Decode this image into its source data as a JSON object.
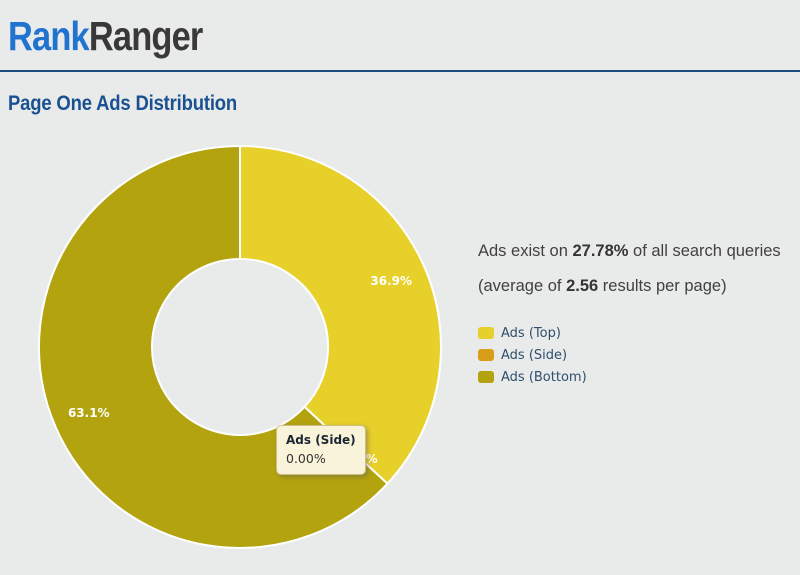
{
  "header": {
    "logo_part1": "Rank",
    "logo_part2": "Ranger",
    "logo_color1": "#2173d0",
    "logo_color2": "#393939",
    "divider_color": "#1e4e7e"
  },
  "title": {
    "text": "Page One Ads Distribution",
    "color": "#1a5191"
  },
  "summary": {
    "line1_pre": "Ads exist on ",
    "line1_bold": "27.78%",
    "line1_post": " of all search queries",
    "line2_pre": "(average of ",
    "line2_bold": "2.56",
    "line2_post": " results per page)"
  },
  "legend": {
    "items": [
      {
        "label": "Ads (Top)",
        "color": "#e7d02a"
      },
      {
        "label": "Ads (Side)",
        "color": "#d99e19"
      },
      {
        "label": "Ads (Bottom)",
        "color": "#b3a30f"
      }
    ]
  },
  "tooltip": {
    "title": "Ads (Side)",
    "value": "0.00%"
  },
  "chart_data": {
    "type": "pie",
    "donut": true,
    "title": "Page One Ads Distribution",
    "categories": [
      "Ads (Top)",
      "Ads (Side)",
      "Ads (Bottom)"
    ],
    "values": [
      36.9,
      0.0,
      63.1
    ],
    "labels": [
      "36.9%",
      "0.0%",
      "63.1%"
    ],
    "colors": [
      "#e7d02a",
      "#d99e19",
      "#b3a30f"
    ],
    "start_angle_deg": 0,
    "center": [
      240,
      347
    ],
    "outer_radius": 201,
    "inner_radius": 88,
    "label_radius": 165,
    "label_color": "#ffffff",
    "slice_border_color": "#ffffff",
    "legend_position": "right",
    "background": "#e9eaea"
  }
}
